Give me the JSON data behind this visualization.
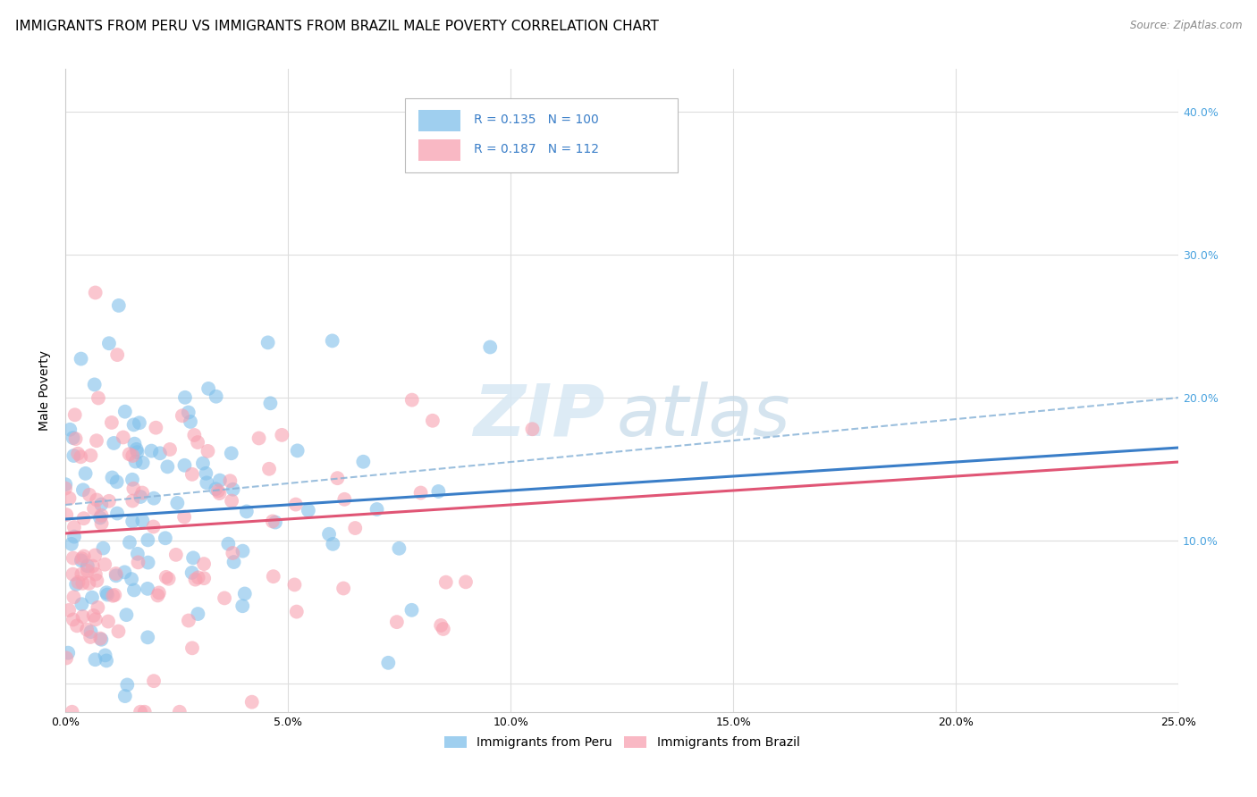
{
  "title": "IMMIGRANTS FROM PERU VS IMMIGRANTS FROM BRAZIL MALE POVERTY CORRELATION CHART",
  "source": "Source: ZipAtlas.com",
  "ylabel_label": "Male Poverty",
  "xlim": [
    0.0,
    0.25
  ],
  "ylim": [
    -0.02,
    0.43
  ],
  "peru_color": "#7fbfea",
  "brazil_color": "#f8a0b0",
  "peru_line_color": "#3a7ec8",
  "brazil_line_color": "#e05575",
  "peru_R": 0.135,
  "peru_N": 100,
  "brazil_R": 0.187,
  "brazil_N": 112,
  "legend_peru": "Immigrants from Peru",
  "legend_brazil": "Immigrants from Brazil",
  "background_color": "#ffffff",
  "grid_color": "#dddddd",
  "title_fontsize": 11,
  "axis_label_fontsize": 10,
  "tick_fontsize": 9,
  "right_ytick_color": "#4aa3df",
  "watermark_zip_color": "#d0dff0",
  "watermark_atlas_color": "#c8d8e8"
}
